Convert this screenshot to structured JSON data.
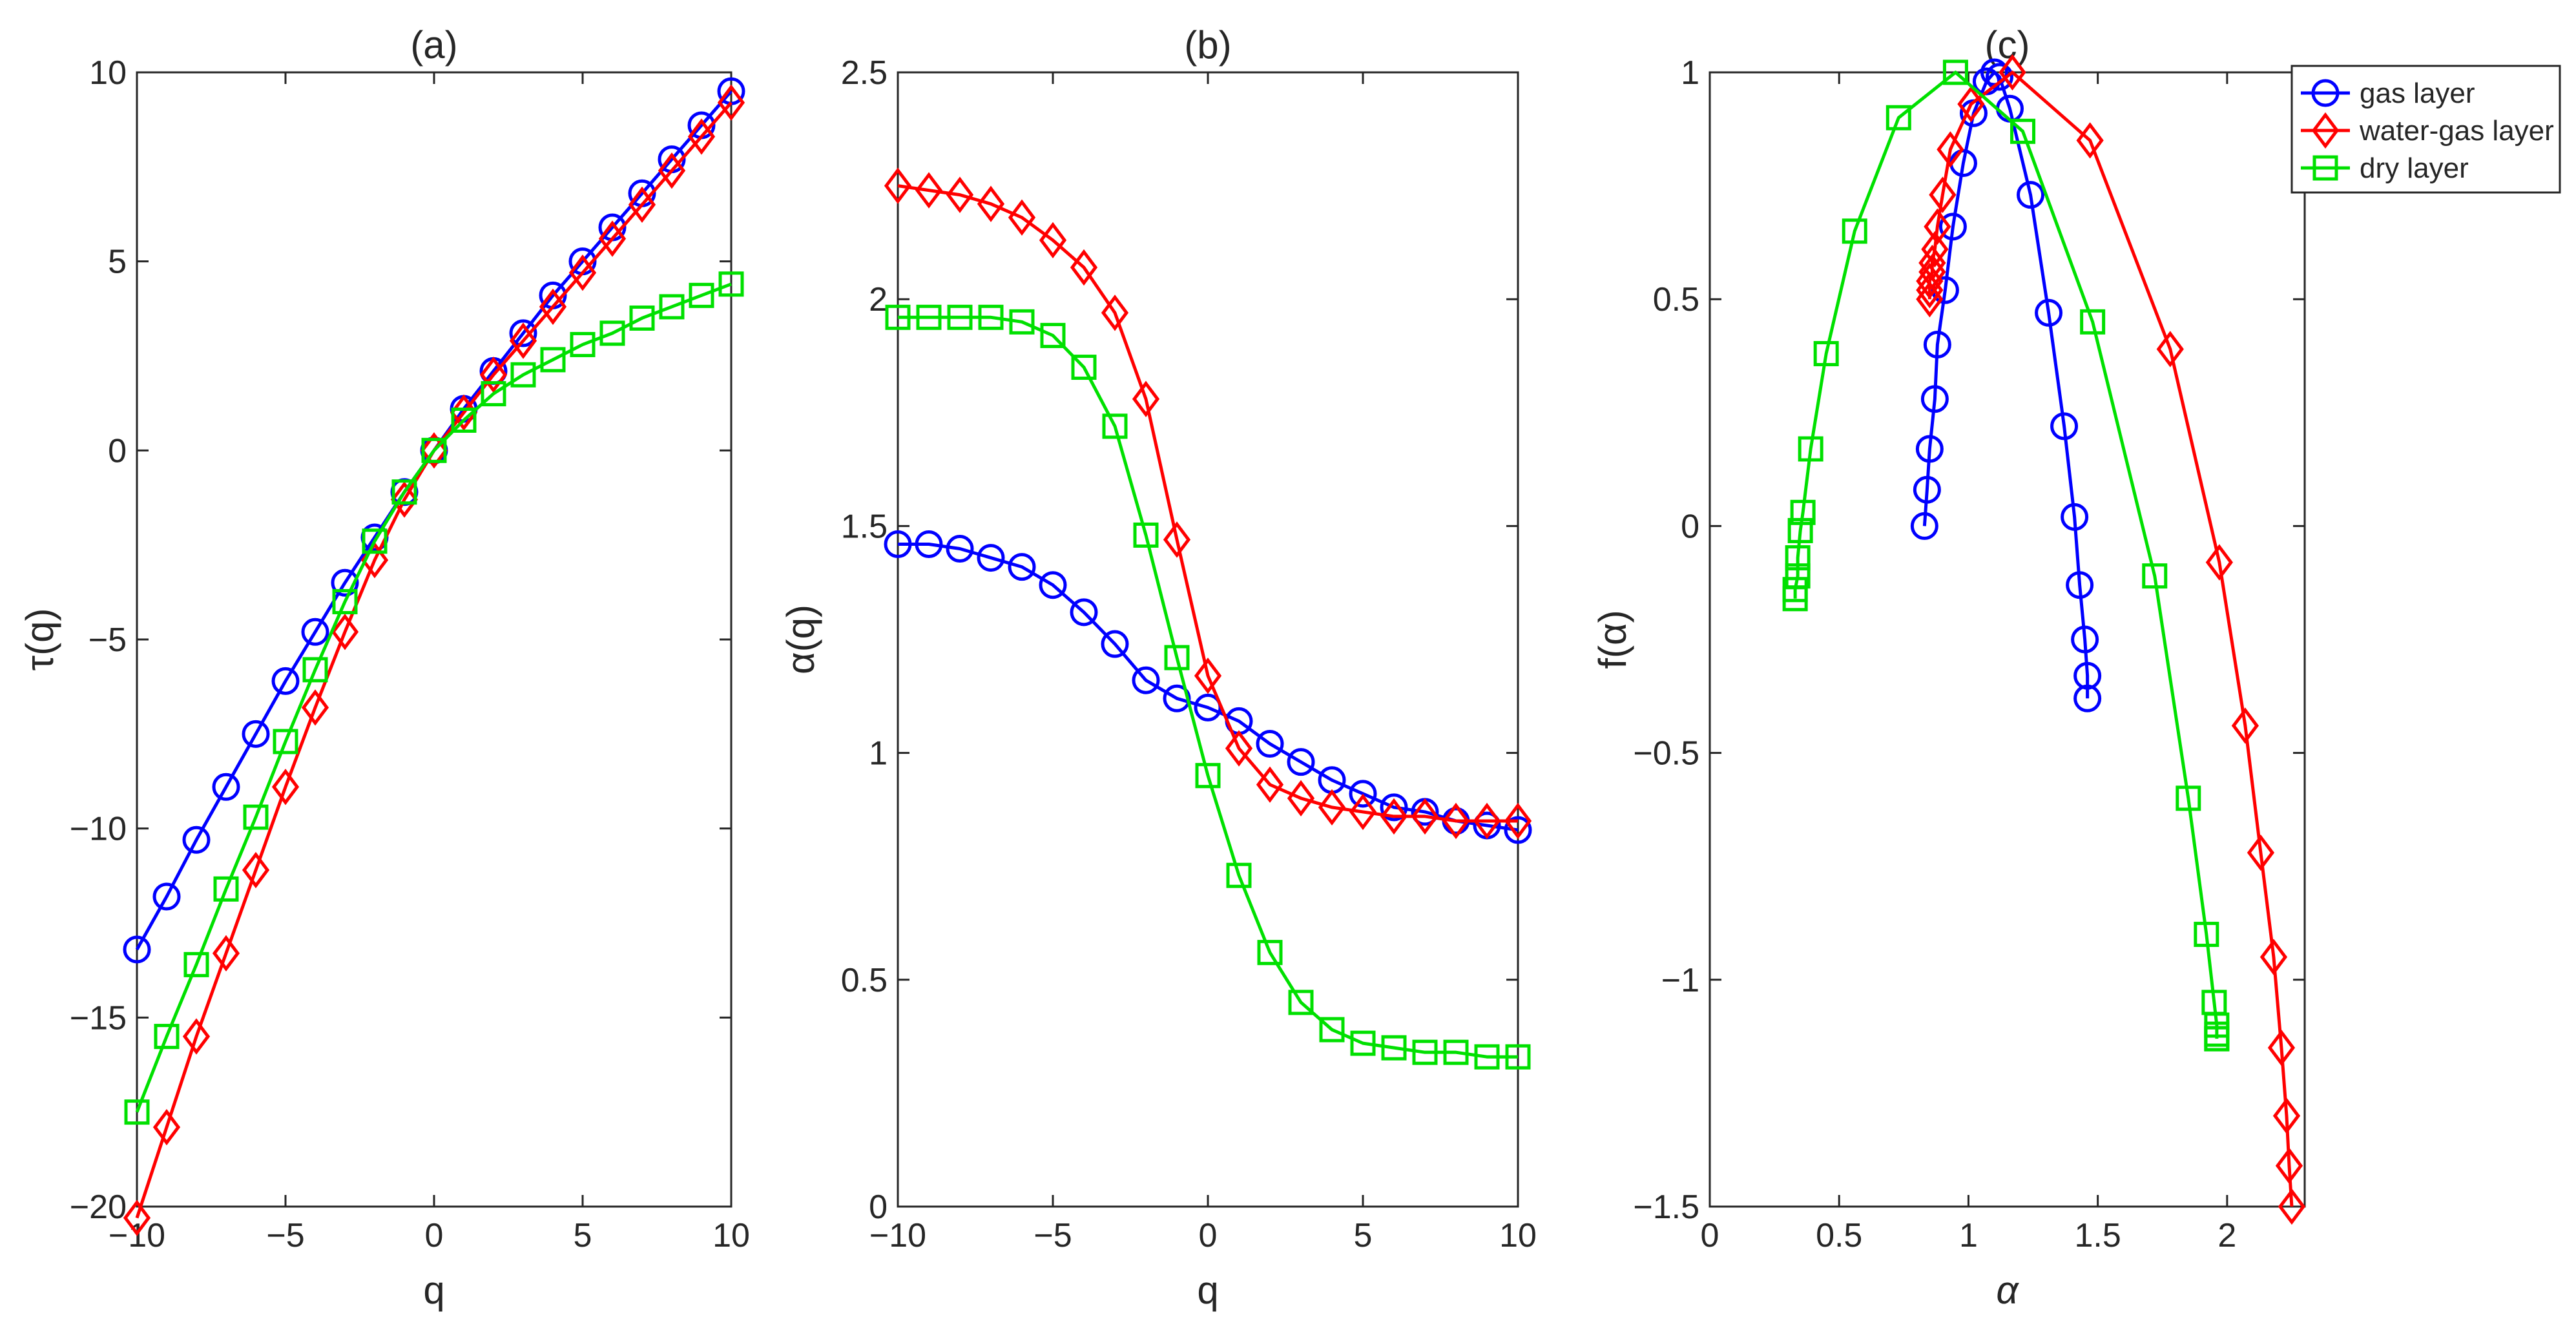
{
  "chart_data": [
    {
      "type": "line",
      "panel": "(a)",
      "title": "(a)",
      "xlabel": "q",
      "ylabel": "τ(q)",
      "xlim": [
        -10,
        10
      ],
      "ylim": [
        -20,
        10
      ],
      "xticks": [
        -10,
        -5,
        0,
        5,
        10
      ],
      "xtick_labels": [
        "−10",
        "−5",
        "0",
        "5",
        "10"
      ],
      "yticks": [
        -20,
        -15,
        -10,
        -5,
        0,
        5,
        10
      ],
      "ytick_labels": [
        "−20",
        "−15",
        "−10",
        "−5",
        "0",
        "5",
        "10"
      ],
      "x": [
        -10,
        -9,
        -8,
        -7,
        -6,
        -5,
        -4,
        -3,
        -2,
        -1,
        0,
        1,
        2,
        3,
        4,
        5,
        6,
        7,
        8,
        9,
        10
      ],
      "series": [
        {
          "name": "gas layer",
          "color": "#0000ff",
          "marker": "circle",
          "values": [
            -13.2,
            -11.8,
            -10.3,
            -8.9,
            -7.5,
            -6.1,
            -4.8,
            -3.5,
            -2.3,
            -1.1,
            0.0,
            1.1,
            2.1,
            3.1,
            4.1,
            5.0,
            5.9,
            6.8,
            7.7,
            8.6,
            9.5
          ]
        },
        {
          "name": "water-gas layer",
          "color": "#ff0000",
          "marker": "diamond",
          "values": [
            -20.3,
            -17.9,
            -15.5,
            -13.3,
            -11.1,
            -8.9,
            -6.8,
            -4.8,
            -2.9,
            -1.3,
            0.0,
            1.0,
            2.0,
            2.9,
            3.8,
            4.7,
            5.6,
            6.5,
            7.4,
            8.3,
            9.2
          ]
        },
        {
          "name": "dry layer",
          "color": "#00e000",
          "marker": "square",
          "values": [
            -17.5,
            -15.5,
            -13.6,
            -11.6,
            -9.7,
            -7.7,
            -5.8,
            -4.0,
            -2.4,
            -1.1,
            0.0,
            0.8,
            1.5,
            2.0,
            2.4,
            2.8,
            3.1,
            3.5,
            3.8,
            4.1,
            4.4
          ]
        }
      ]
    },
    {
      "type": "line",
      "panel": "(b)",
      "title": "(b)",
      "xlabel": "q",
      "ylabel": "α(q)",
      "xlim": [
        -10,
        10
      ],
      "ylim": [
        0,
        2.5
      ],
      "xticks": [
        -10,
        -5,
        0,
        5,
        10
      ],
      "xtick_labels": [
        "−10",
        "−5",
        "0",
        "5",
        "10"
      ],
      "yticks": [
        0,
        0.5,
        1,
        1.5,
        2,
        2.5
      ],
      "ytick_labels": [
        "0",
        "0.5",
        "1",
        "1.5",
        "2",
        "2.5"
      ],
      "x": [
        -10,
        -9,
        -8,
        -7,
        -6,
        -5,
        -4,
        -3,
        -2,
        -1,
        0,
        1,
        2,
        3,
        4,
        5,
        6,
        7,
        8,
        9,
        10
      ],
      "series": [
        {
          "name": "gas layer",
          "color": "#0000ff",
          "marker": "circle",
          "values": [
            1.46,
            1.46,
            1.45,
            1.43,
            1.41,
            1.37,
            1.31,
            1.24,
            1.16,
            1.12,
            1.1,
            1.07,
            1.02,
            0.98,
            0.94,
            0.91,
            0.88,
            0.87,
            0.85,
            0.84,
            0.83
          ]
        },
        {
          "name": "water-gas layer",
          "color": "#ff0000",
          "marker": "diamond",
          "values": [
            2.25,
            2.24,
            2.23,
            2.21,
            2.18,
            2.13,
            2.07,
            1.97,
            1.78,
            1.47,
            1.17,
            1.01,
            0.93,
            0.9,
            0.88,
            0.87,
            0.86,
            0.86,
            0.85,
            0.85,
            0.85
          ]
        },
        {
          "name": "dry layer",
          "color": "#00e000",
          "marker": "square",
          "values": [
            1.96,
            1.96,
            1.96,
            1.96,
            1.95,
            1.92,
            1.85,
            1.72,
            1.48,
            1.21,
            0.95,
            0.73,
            0.56,
            0.45,
            0.39,
            0.36,
            0.35,
            0.34,
            0.34,
            0.33,
            0.33
          ]
        }
      ]
    },
    {
      "type": "line",
      "panel": "(c)",
      "title": "(c)",
      "xlabel": "α",
      "ylabel": "f(α)",
      "xlim": [
        0,
        2.3
      ],
      "ylim": [
        -1.5,
        1
      ],
      "xticks": [
        0,
        0.5,
        1,
        1.5,
        2
      ],
      "xtick_labels": [
        "0",
        "0.5",
        "1",
        "1.5",
        "2"
      ],
      "yticks": [
        -1.5,
        -1,
        -0.5,
        0,
        0.5,
        1
      ],
      "ytick_labels": [
        "−1.5",
        "−1",
        "−0.5",
        "0",
        "0.5",
        "1"
      ],
      "legend_position": "top-right",
      "series": [
        {
          "name": "gas layer",
          "color": "#0000ff",
          "marker": "circle",
          "x": [
            0.83,
            0.84,
            0.85,
            0.87,
            0.88,
            0.91,
            0.94,
            0.98,
            1.02,
            1.07,
            1.1,
            1.12,
            1.16,
            1.24,
            1.31,
            1.37,
            1.41,
            1.43,
            1.45,
            1.46,
            1.46
          ],
          "y": [
            0.0,
            0.08,
            0.17,
            0.28,
            0.4,
            0.52,
            0.66,
            0.8,
            0.91,
            0.98,
            1.0,
            0.99,
            0.92,
            0.73,
            0.47,
            0.22,
            0.02,
            -0.13,
            -0.25,
            -0.33,
            -0.38
          ]
        },
        {
          "name": "water-gas layer",
          "color": "#ff0000",
          "marker": "diamond",
          "x": [
            0.85,
            0.85,
            0.85,
            0.86,
            0.86,
            0.87,
            0.88,
            0.9,
            0.93,
            1.01,
            1.17,
            1.47,
            1.78,
            1.97,
            2.07,
            2.13,
            2.18,
            2.21,
            2.23,
            2.24,
            2.25
          ],
          "y": [
            0.5,
            0.52,
            0.54,
            0.56,
            0.58,
            0.61,
            0.66,
            0.73,
            0.83,
            0.93,
            1.0,
            0.85,
            0.39,
            -0.08,
            -0.44,
            -0.72,
            -0.95,
            -1.15,
            -1.3,
            -1.41,
            -1.5
          ]
        },
        {
          "name": "dry layer",
          "color": "#00e000",
          "marker": "square",
          "x": [
            0.33,
            0.33,
            0.34,
            0.34,
            0.35,
            0.36,
            0.39,
            0.45,
            0.56,
            0.73,
            0.95,
            1.21,
            1.48,
            1.72,
            1.85,
            1.92,
            1.95,
            1.96,
            1.96,
            1.96,
            1.96
          ],
          "y": [
            -0.16,
            -0.14,
            -0.11,
            -0.07,
            -0.01,
            0.03,
            0.17,
            0.38,
            0.65,
            0.9,
            1.0,
            0.87,
            0.45,
            -0.11,
            -0.6,
            -0.9,
            -1.05,
            -1.1,
            -1.12,
            -1.13,
            -1.13
          ]
        }
      ]
    }
  ],
  "legend": [
    {
      "label": "gas layer",
      "color": "#0000ff",
      "marker": "circle"
    },
    {
      "label": "water-gas layer",
      "color": "#ff0000",
      "marker": "diamond"
    },
    {
      "label": "dry layer",
      "color": "#00e000",
      "marker": "square"
    }
  ]
}
